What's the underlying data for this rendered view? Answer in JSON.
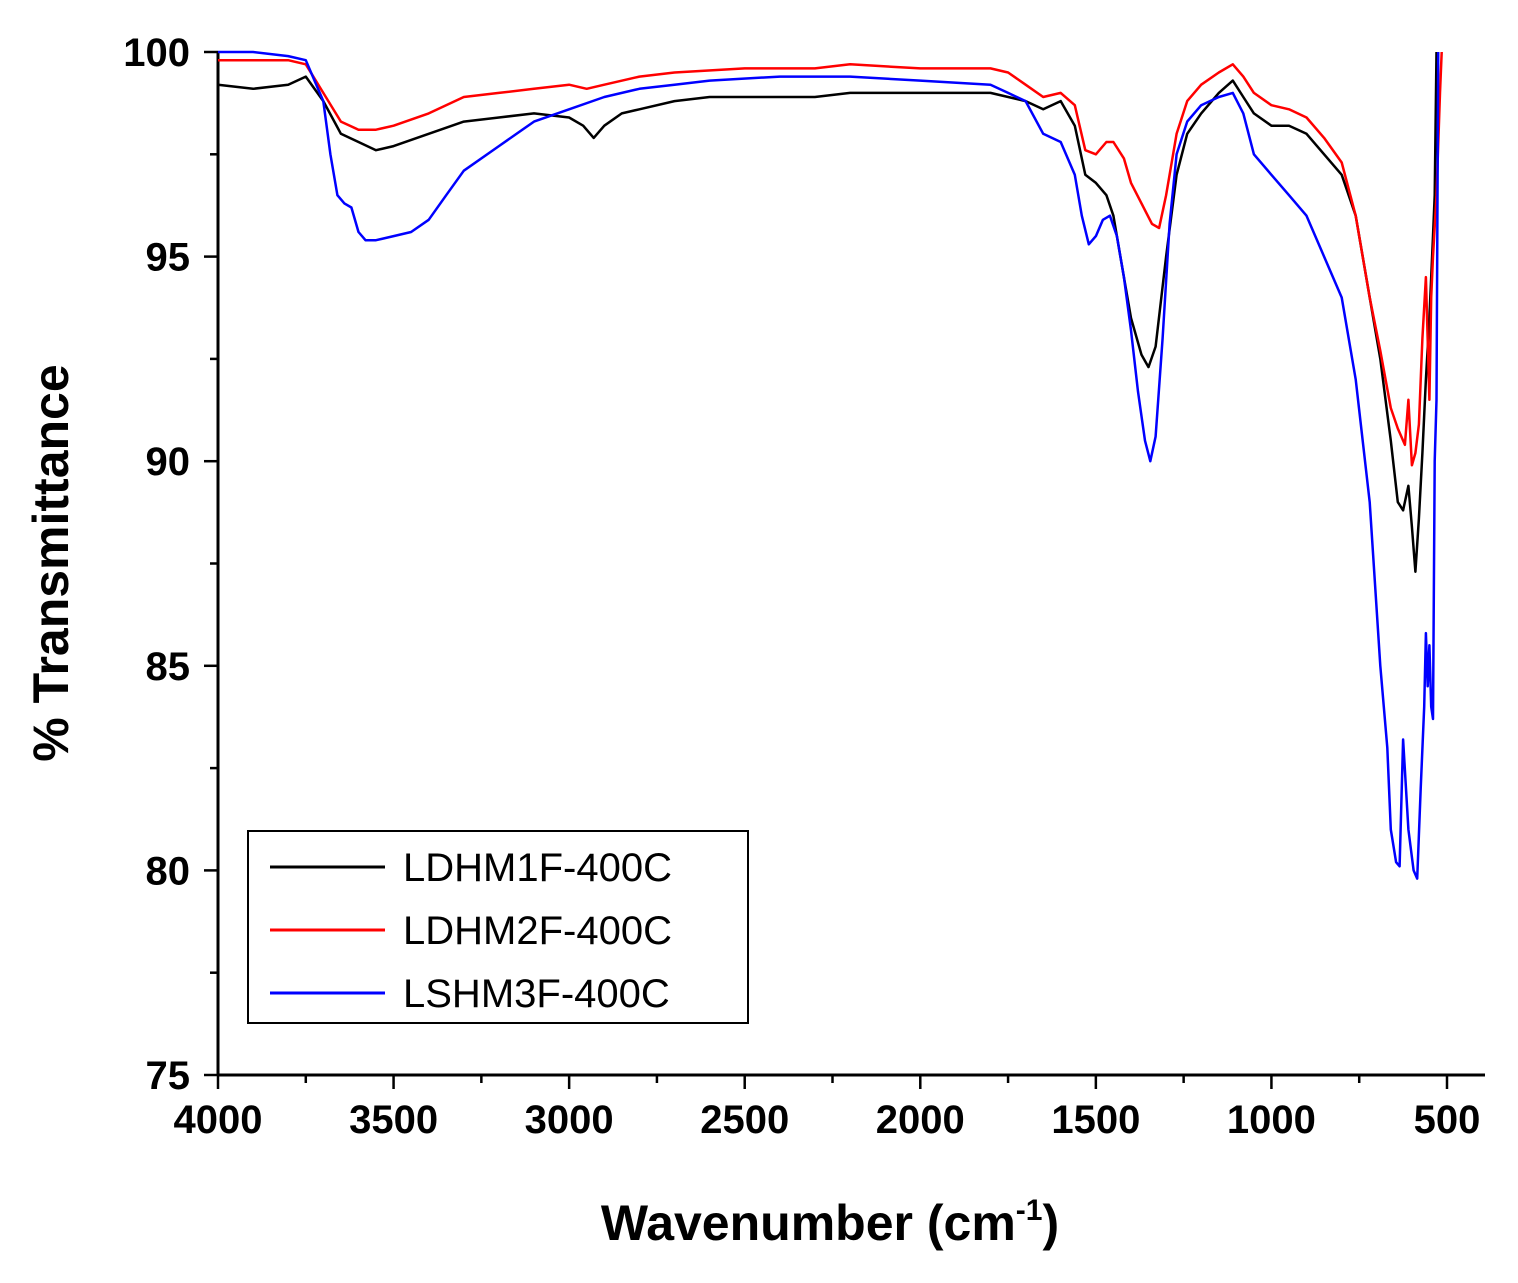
{
  "chart_data": {
    "type": "line",
    "xlabel": "Wavenumber (cm",
    "xlabel_sup": "-1",
    "xlabel_close": ")",
    "ylabel": "% Transmittance",
    "xlim": [
      4000,
      400
    ],
    "ylim": [
      75,
      100
    ],
    "x_ticks": [
      4000,
      3500,
      3000,
      2500,
      2000,
      1500,
      1000,
      500
    ],
    "y_ticks": [
      75,
      80,
      85,
      90,
      95,
      100
    ],
    "colors": {
      "tick_labels": "#000000",
      "axis_titles": "#000000"
    },
    "legend_position": "bottom-left",
    "series": [
      {
        "name": "LDHM1F-400C",
        "color": "#000000",
        "points": [
          [
            4000,
            99.2
          ],
          [
            3900,
            99.1
          ],
          [
            3800,
            99.2
          ],
          [
            3750,
            99.4
          ],
          [
            3700,
            98.8
          ],
          [
            3650,
            98.0
          ],
          [
            3600,
            97.8
          ],
          [
            3550,
            97.6
          ],
          [
            3500,
            97.7
          ],
          [
            3400,
            98.0
          ],
          [
            3300,
            98.3
          ],
          [
            3200,
            98.4
          ],
          [
            3100,
            98.5
          ],
          [
            3000,
            98.4
          ],
          [
            2960,
            98.2
          ],
          [
            2930,
            97.9
          ],
          [
            2900,
            98.2
          ],
          [
            2850,
            98.5
          ],
          [
            2800,
            98.6
          ],
          [
            2700,
            98.8
          ],
          [
            2600,
            98.9
          ],
          [
            2400,
            98.9
          ],
          [
            2300,
            98.9
          ],
          [
            2200,
            99.0
          ],
          [
            2000,
            99.0
          ],
          [
            1800,
            99.0
          ],
          [
            1700,
            98.8
          ],
          [
            1650,
            98.6
          ],
          [
            1600,
            98.8
          ],
          [
            1560,
            98.2
          ],
          [
            1530,
            97.0
          ],
          [
            1500,
            96.8
          ],
          [
            1470,
            96.5
          ],
          [
            1450,
            96.0
          ],
          [
            1420,
            94.5
          ],
          [
            1400,
            93.5
          ],
          [
            1370,
            92.6
          ],
          [
            1350,
            92.3
          ],
          [
            1330,
            92.8
          ],
          [
            1300,
            95.0
          ],
          [
            1270,
            97.0
          ],
          [
            1240,
            98.0
          ],
          [
            1200,
            98.5
          ],
          [
            1150,
            99.0
          ],
          [
            1110,
            99.3
          ],
          [
            1080,
            98.9
          ],
          [
            1050,
            98.5
          ],
          [
            1000,
            98.2
          ],
          [
            950,
            98.2
          ],
          [
            900,
            98.0
          ],
          [
            850,
            97.5
          ],
          [
            800,
            97.0
          ],
          [
            760,
            96.0
          ],
          [
            720,
            94.0
          ],
          [
            690,
            92.5
          ],
          [
            660,
            90.5
          ],
          [
            640,
            89.0
          ],
          [
            625,
            88.8
          ],
          [
            610,
            89.4
          ],
          [
            600,
            88.4
          ],
          [
            590,
            87.3
          ],
          [
            580,
            88.6
          ],
          [
            570,
            90.2
          ],
          [
            560,
            92.0
          ],
          [
            550,
            93.5
          ],
          [
            540,
            95.5
          ],
          [
            535,
            96.5
          ],
          [
            530,
            100.0
          ]
        ]
      },
      {
        "name": "LDHM2F-400C",
        "color": "#ff0000",
        "points": [
          [
            4000,
            99.8
          ],
          [
            3900,
            99.8
          ],
          [
            3800,
            99.8
          ],
          [
            3750,
            99.7
          ],
          [
            3700,
            99.0
          ],
          [
            3650,
            98.3
          ],
          [
            3600,
            98.1
          ],
          [
            3550,
            98.1
          ],
          [
            3500,
            98.2
          ],
          [
            3400,
            98.5
          ],
          [
            3300,
            98.9
          ],
          [
            3200,
            99.0
          ],
          [
            3100,
            99.1
          ],
          [
            3000,
            99.2
          ],
          [
            2950,
            99.1
          ],
          [
            2900,
            99.2
          ],
          [
            2800,
            99.4
          ],
          [
            2700,
            99.5
          ],
          [
            2500,
            99.6
          ],
          [
            2300,
            99.6
          ],
          [
            2200,
            99.7
          ],
          [
            2000,
            99.6
          ],
          [
            1800,
            99.6
          ],
          [
            1750,
            99.5
          ],
          [
            1700,
            99.2
          ],
          [
            1650,
            98.9
          ],
          [
            1600,
            99.0
          ],
          [
            1560,
            98.7
          ],
          [
            1530,
            97.6
          ],
          [
            1500,
            97.5
          ],
          [
            1470,
            97.8
          ],
          [
            1450,
            97.8
          ],
          [
            1420,
            97.4
          ],
          [
            1400,
            96.8
          ],
          [
            1370,
            96.3
          ],
          [
            1340,
            95.8
          ],
          [
            1320,
            95.7
          ],
          [
            1300,
            96.5
          ],
          [
            1270,
            98.0
          ],
          [
            1240,
            98.8
          ],
          [
            1200,
            99.2
          ],
          [
            1150,
            99.5
          ],
          [
            1110,
            99.7
          ],
          [
            1080,
            99.4
          ],
          [
            1050,
            99.0
          ],
          [
            1000,
            98.7
          ],
          [
            950,
            98.6
          ],
          [
            900,
            98.4
          ],
          [
            850,
            97.9
          ],
          [
            800,
            97.3
          ],
          [
            760,
            96.0
          ],
          [
            720,
            94.0
          ],
          [
            690,
            92.7
          ],
          [
            660,
            91.3
          ],
          [
            640,
            90.8
          ],
          [
            620,
            90.4
          ],
          [
            610,
            91.5
          ],
          [
            600,
            89.9
          ],
          [
            590,
            90.2
          ],
          [
            580,
            90.9
          ],
          [
            570,
            93.0
          ],
          [
            560,
            94.5
          ],
          [
            550,
            91.5
          ],
          [
            545,
            94.0
          ],
          [
            540,
            95.0
          ],
          [
            530,
            96.5
          ],
          [
            520,
            99.0
          ],
          [
            515,
            100.0
          ]
        ]
      },
      {
        "name": "LSHM3F-400C",
        "color": "#0000ff",
        "points": [
          [
            4000,
            100.0
          ],
          [
            3900,
            100.0
          ],
          [
            3800,
            99.9
          ],
          [
            3750,
            99.8
          ],
          [
            3700,
            98.8
          ],
          [
            3680,
            97.5
          ],
          [
            3660,
            96.5
          ],
          [
            3640,
            96.3
          ],
          [
            3620,
            96.2
          ],
          [
            3600,
            95.6
          ],
          [
            3580,
            95.4
          ],
          [
            3550,
            95.4
          ],
          [
            3500,
            95.5
          ],
          [
            3450,
            95.6
          ],
          [
            3400,
            95.9
          ],
          [
            3350,
            96.5
          ],
          [
            3300,
            97.1
          ],
          [
            3200,
            97.7
          ],
          [
            3100,
            98.3
          ],
          [
            3000,
            98.6
          ],
          [
            2900,
            98.9
          ],
          [
            2800,
            99.1
          ],
          [
            2700,
            99.2
          ],
          [
            2600,
            99.3
          ],
          [
            2400,
            99.4
          ],
          [
            2200,
            99.4
          ],
          [
            2000,
            99.3
          ],
          [
            1800,
            99.2
          ],
          [
            1750,
            99.0
          ],
          [
            1700,
            98.8
          ],
          [
            1650,
            98.0
          ],
          [
            1600,
            97.8
          ],
          [
            1560,
            97.0
          ],
          [
            1540,
            96.0
          ],
          [
            1520,
            95.3
          ],
          [
            1500,
            95.5
          ],
          [
            1480,
            95.9
          ],
          [
            1460,
            96.0
          ],
          [
            1440,
            95.5
          ],
          [
            1420,
            94.5
          ],
          [
            1400,
            93.2
          ],
          [
            1380,
            91.7
          ],
          [
            1360,
            90.5
          ],
          [
            1345,
            90.0
          ],
          [
            1330,
            90.6
          ],
          [
            1310,
            93.0
          ],
          [
            1290,
            95.8
          ],
          [
            1270,
            97.5
          ],
          [
            1240,
            98.3
          ],
          [
            1200,
            98.7
          ],
          [
            1150,
            98.9
          ],
          [
            1110,
            99.0
          ],
          [
            1080,
            98.5
          ],
          [
            1050,
            97.5
          ],
          [
            1000,
            97.0
          ],
          [
            950,
            96.5
          ],
          [
            900,
            96.0
          ],
          [
            850,
            95.0
          ],
          [
            800,
            94.0
          ],
          [
            760,
            92.0
          ],
          [
            720,
            89.0
          ],
          [
            690,
            85.0
          ],
          [
            670,
            83.0
          ],
          [
            660,
            81.0
          ],
          [
            645,
            80.2
          ],
          [
            635,
            80.1
          ],
          [
            625,
            83.2
          ],
          [
            610,
            81.0
          ],
          [
            595,
            80.0
          ],
          [
            585,
            79.8
          ],
          [
            575,
            82.0
          ],
          [
            565,
            84.0
          ],
          [
            560,
            85.8
          ],
          [
            555,
            84.5
          ],
          [
            550,
            85.5
          ],
          [
            545,
            84.0
          ],
          [
            540,
            83.7
          ],
          [
            535,
            90.0
          ],
          [
            530,
            91.5
          ],
          [
            525,
            100.0
          ]
        ]
      }
    ]
  }
}
